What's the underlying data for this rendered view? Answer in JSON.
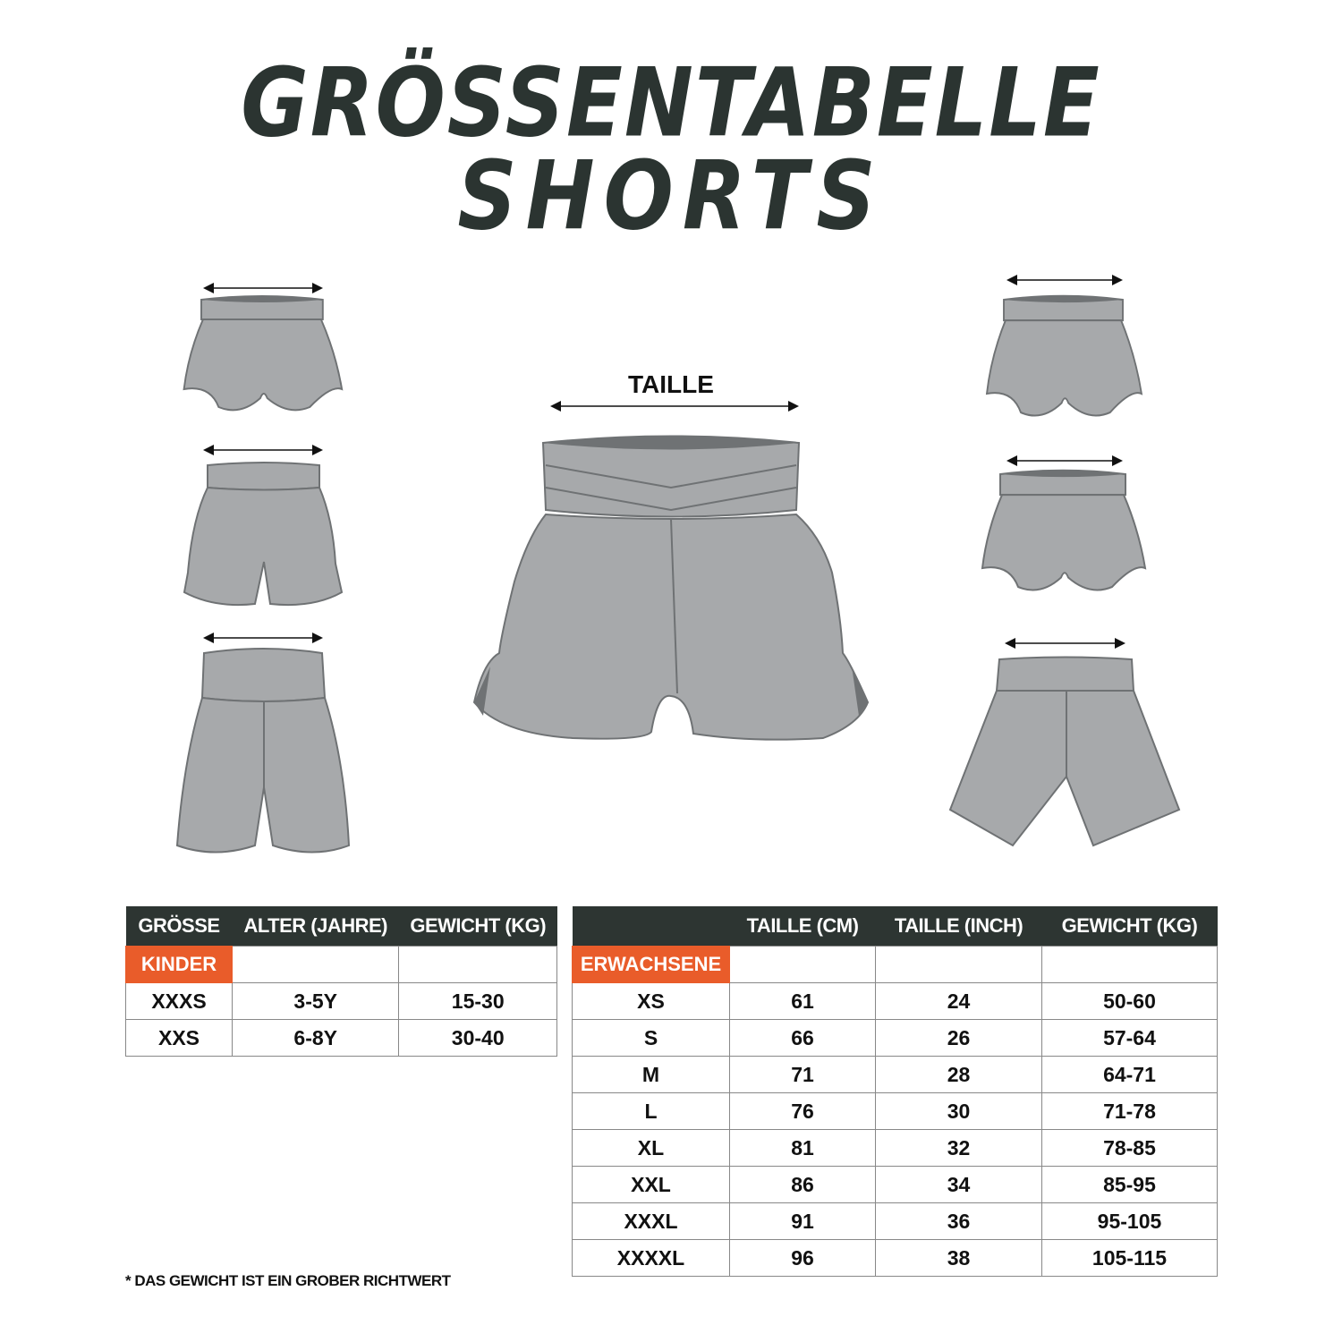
{
  "title": {
    "line1": "GRÖSSENTABELLE",
    "line2": "SHORTS"
  },
  "illustration": {
    "measure_label": "TAILLE"
  },
  "colors": {
    "header_bg": "#2d3532",
    "category_bg": "#e95c2a",
    "shorts_fill": "#a7a9ab",
    "shorts_dark": "#6f7274"
  },
  "kids_table": {
    "headers": [
      "GRÖSSE",
      "ALTER (JAHRE)",
      "GEWICHT (KG)"
    ],
    "category": "KINDER",
    "rows": [
      [
        "XXXS",
        "3-5Y",
        "15-30"
      ],
      [
        "XXS",
        "6-8Y",
        "30-40"
      ]
    ]
  },
  "adults_table": {
    "headers": [
      "",
      "TAILLE (CM)",
      "TAILLE (INCH)",
      "GEWICHT (KG)"
    ],
    "category": "ERWACHSENE",
    "rows": [
      [
        "XS",
        "61",
        "24",
        "50-60"
      ],
      [
        "S",
        "66",
        "26",
        "57-64"
      ],
      [
        "M",
        "71",
        "28",
        "64-71"
      ],
      [
        "L",
        "76",
        "30",
        "71-78"
      ],
      [
        "XL",
        "81",
        "32",
        "78-85"
      ],
      [
        "XXL",
        "86",
        "34",
        "85-95"
      ],
      [
        "XXXL",
        "91",
        "36",
        "95-105"
      ],
      [
        "XXXXL",
        "96",
        "38",
        "105-115"
      ]
    ]
  },
  "footnote": "* DAS GEWICHT IST EIN GROBER RICHTWERT"
}
